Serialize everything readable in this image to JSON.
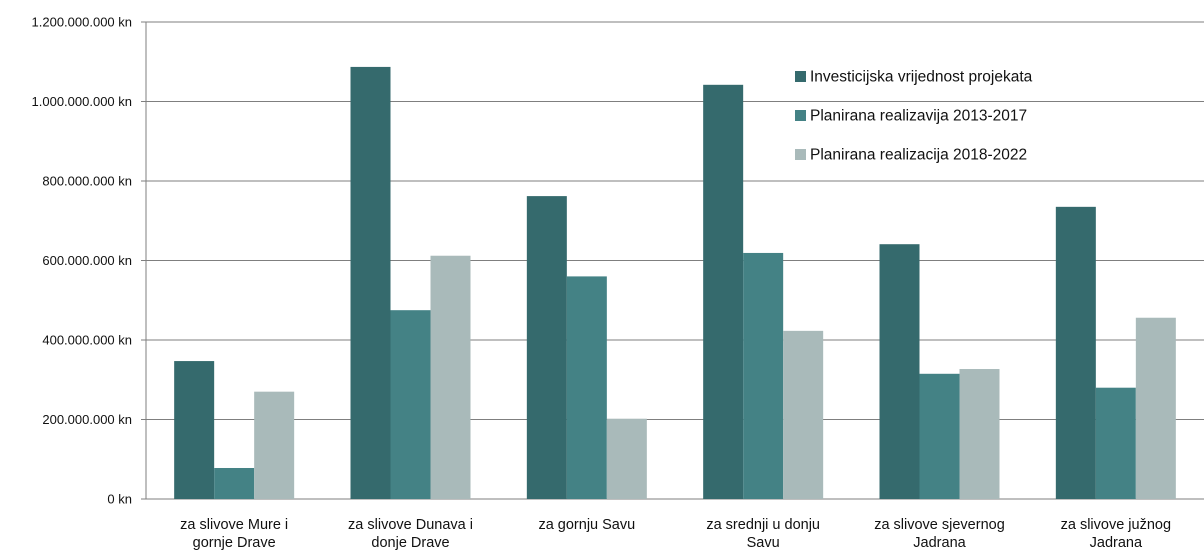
{
  "chart_data": {
    "type": "bar",
    "title": "",
    "xlabel": "",
    "ylabel": "",
    "ylim": [
      0,
      1200000000
    ],
    "yticks": [
      0,
      200000000,
      400000000,
      600000000,
      800000000,
      1000000000,
      1200000000
    ],
    "ytick_labels": [
      "0 kn",
      "200.000.000 kn",
      "400.000.000 kn",
      "600.000.000 kn",
      "800.000.000 kn",
      "1.000.000.000 kn",
      "1.200.000.000 kn"
    ],
    "grid": true,
    "legend_position": "top-right",
    "categories": [
      [
        "za slivove Mure i",
        "gornje Drave"
      ],
      [
        "za slivove Dunava i",
        "donje Drave"
      ],
      [
        "za gornju Savu"
      ],
      [
        "za srednji u donju",
        "Savu"
      ],
      [
        "za slivove sjevernog",
        "Jadrana"
      ],
      [
        "za slivove južnog",
        "Jadrana"
      ]
    ],
    "series": [
      {
        "name": "Investicijska vrijednost projekata",
        "color": "#356a6d",
        "values": [
          347000000,
          1087000000,
          762000000,
          1042000000,
          641000000,
          735000000
        ]
      },
      {
        "name": "Planirana realizavija 2013-2017",
        "color": "#448285",
        "values": [
          78000000,
          475000000,
          560000000,
          619000000,
          315000000,
          280000000
        ]
      },
      {
        "name": "Planirana realizacija 2018-2022",
        "color": "#a9baba",
        "values": [
          270000000,
          612000000,
          202000000,
          423000000,
          327000000,
          456000000
        ]
      }
    ]
  }
}
